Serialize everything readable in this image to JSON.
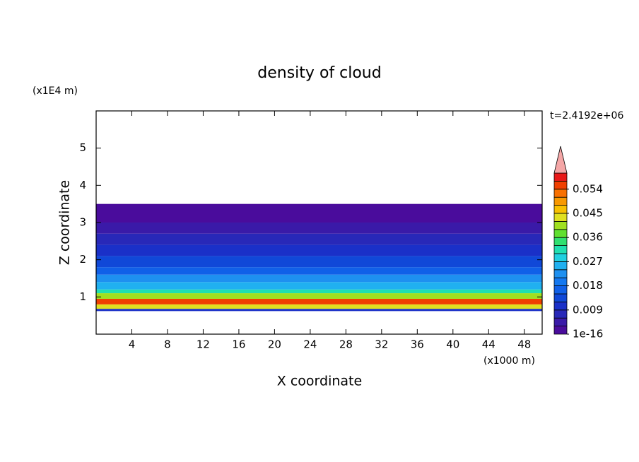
{
  "chart_data": {
    "type": "contour",
    "title": "density of cloud",
    "annotation": "t=2.4192e+06",
    "xlabel": "X coordinate",
    "ylabel": "Z coordinate",
    "x_unit": "(x1000 m)",
    "y_unit": "(x1E4 m)",
    "xlim": [
      0,
      50
    ],
    "xticks": [
      4,
      8,
      12,
      16,
      20,
      24,
      28,
      32,
      36,
      40,
      44,
      48
    ],
    "ylim": [
      0,
      6
    ],
    "yticks": [
      1,
      2,
      3,
      4,
      5
    ],
    "z_edges": [
      0.62,
      0.68,
      0.8,
      0.95,
      1.1,
      1.2,
      1.4,
      1.6,
      1.8,
      2.1,
      2.4,
      2.7,
      3.0,
      3.5
    ],
    "values": [
      0.012,
      0.045,
      0.055,
      0.04,
      0.033,
      0.026,
      0.022,
      0.017,
      0.014,
      0.01,
      0.008,
      0.005,
      0.001
    ],
    "clim": [
      1e-16,
      0.06
    ],
    "colors": [
      "#4a0c9c",
      "#3a1aa8",
      "#2828b8",
      "#1a30c8",
      "#1048d8",
      "#1060e8",
      "#1478f0",
      "#1e90f0",
      "#20b0f0",
      "#20d0e0",
      "#20e0b0",
      "#30e070",
      "#60e030",
      "#a0e020",
      "#e0e020",
      "#f8c000",
      "#f89800",
      "#f87000",
      "#f04000",
      "#e81818"
    ],
    "extend_color": "#f4a6a6",
    "cbar_ticks": [
      {
        "value": 1e-16,
        "label": "1e-16"
      },
      0.009,
      0.018,
      0.027,
      0.036,
      0.045,
      0.054
    ]
  }
}
